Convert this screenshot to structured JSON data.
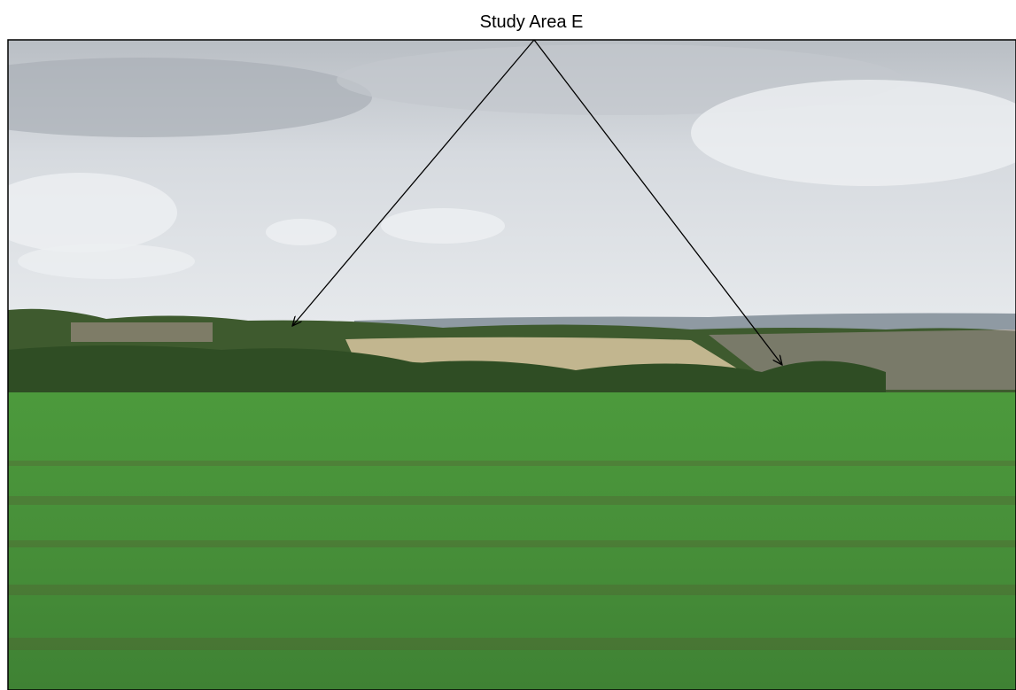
{
  "label": "Study Area E"
}
